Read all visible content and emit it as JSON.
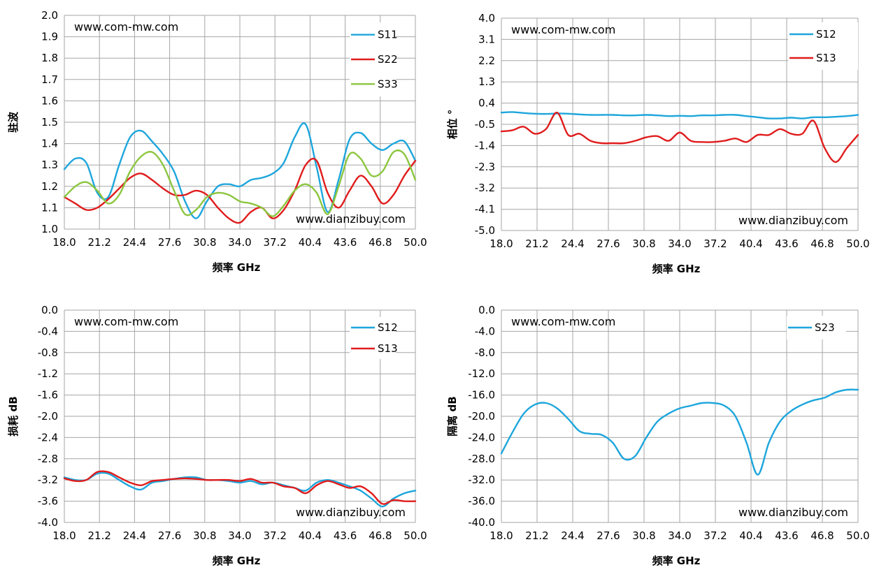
{
  "charts": [
    {
      "id": "vswr",
      "type": "line",
      "watermark_top": "www.com-mw.com",
      "watermark_bottom": "www.dianzibuy.com",
      "xlabel": "频率 GHz",
      "ylabel": "驻波",
      "xlim": [
        18.0,
        50.0
      ],
      "ylim": [
        1.0,
        2.0
      ],
      "x_ticks": [
        "18.0",
        "21.2",
        "24.4",
        "27.6",
        "30.8",
        "34.0",
        "37.2",
        "40.4",
        "43.6",
        "46.8",
        "50.0"
      ],
      "y_ticks": [
        "2.0",
        "1.9",
        "1.8",
        "1.7",
        "1.6",
        "1.5",
        "1.4",
        "1.3",
        "1.2",
        "1.1",
        "1.0"
      ],
      "series": [
        {
          "name": "S11",
          "color": "#1ea6dc",
          "x": [
            18.0,
            19.0,
            20.0,
            21.0,
            22.0,
            23.0,
            24.0,
            25.0,
            26.0,
            27.0,
            28.0,
            29.0,
            30.0,
            31.0,
            32.0,
            33.0,
            34.0,
            35.0,
            36.0,
            37.0,
            38.0,
            39.0,
            40.0,
            41.0,
            42.0,
            43.0,
            44.0,
            45.0,
            46.0,
            47.0,
            48.0,
            49.0,
            50.0
          ],
          "y": [
            1.28,
            1.33,
            1.31,
            1.17,
            1.15,
            1.3,
            1.43,
            1.46,
            1.41,
            1.35,
            1.27,
            1.13,
            1.05,
            1.13,
            1.2,
            1.21,
            1.2,
            1.23,
            1.24,
            1.26,
            1.31,
            1.43,
            1.49,
            1.29,
            1.08,
            1.23,
            1.42,
            1.45,
            1.4,
            1.37,
            1.4,
            1.41,
            1.32
          ]
        },
        {
          "name": "S22",
          "color": "#e01c1c",
          "x": [
            18.0,
            19.0,
            20.0,
            21.0,
            22.0,
            23.0,
            24.0,
            25.0,
            26.0,
            27.0,
            28.0,
            29.0,
            30.0,
            31.0,
            32.0,
            33.0,
            34.0,
            35.0,
            36.0,
            37.0,
            38.0,
            39.0,
            40.0,
            41.0,
            42.0,
            43.0,
            44.0,
            45.0,
            46.0,
            47.0,
            48.0,
            49.0,
            50.0
          ],
          "y": [
            1.15,
            1.12,
            1.09,
            1.1,
            1.14,
            1.19,
            1.24,
            1.26,
            1.23,
            1.19,
            1.16,
            1.16,
            1.18,
            1.16,
            1.1,
            1.05,
            1.03,
            1.08,
            1.1,
            1.05,
            1.09,
            1.18,
            1.3,
            1.32,
            1.17,
            1.1,
            1.18,
            1.25,
            1.2,
            1.12,
            1.16,
            1.25,
            1.32
          ]
        },
        {
          "name": "S33",
          "color": "#8cc63f",
          "x": [
            18.0,
            19.0,
            20.0,
            21.0,
            22.0,
            23.0,
            24.0,
            25.0,
            26.0,
            27.0,
            28.0,
            29.0,
            30.0,
            31.0,
            32.0,
            33.0,
            34.0,
            35.0,
            36.0,
            37.0,
            38.0,
            39.0,
            40.0,
            41.0,
            42.0,
            43.0,
            44.0,
            45.0,
            46.0,
            47.0,
            48.0,
            49.0,
            50.0
          ],
          "y": [
            1.15,
            1.2,
            1.22,
            1.18,
            1.12,
            1.16,
            1.27,
            1.34,
            1.36,
            1.3,
            1.18,
            1.07,
            1.09,
            1.15,
            1.17,
            1.16,
            1.13,
            1.12,
            1.1,
            1.06,
            1.11,
            1.18,
            1.21,
            1.17,
            1.07,
            1.2,
            1.35,
            1.33,
            1.25,
            1.27,
            1.36,
            1.35,
            1.23
          ]
        }
      ]
    },
    {
      "id": "phase",
      "type": "line",
      "watermark_top": "www.com-mw.com",
      "watermark_bottom": "www.dianzibuy.com",
      "xlabel": "频率 GHz",
      "ylabel": "相位 °",
      "xlim": [
        18.0,
        50.0
      ],
      "ylim": [
        -5.0,
        4.0
      ],
      "x_ticks": [
        "18.0",
        "21.2",
        "24.4",
        "27.6",
        "30.8",
        "34.0",
        "37.2",
        "40.4",
        "43.6",
        "46.8",
        "50.0"
      ],
      "y_ticks": [
        "4.0",
        "3.1",
        "2.2",
        "1.3",
        "0.4",
        "-0.5",
        "-1.4",
        "-2.3",
        "-3.2",
        "-4.1",
        "-5.0"
      ],
      "series": [
        {
          "name": "S12",
          "color": "#1ea6dc",
          "x": [
            18.0,
            19.0,
            20.0,
            21.0,
            22.0,
            23.0,
            24.0,
            25.0,
            26.0,
            27.0,
            28.0,
            29.0,
            30.0,
            31.0,
            32.0,
            33.0,
            34.0,
            35.0,
            36.0,
            37.0,
            38.0,
            39.0,
            40.0,
            41.0,
            42.0,
            43.0,
            44.0,
            45.0,
            46.0,
            47.0,
            48.0,
            49.0,
            50.0
          ],
          "y": [
            0.0,
            0.02,
            -0.02,
            -0.05,
            -0.06,
            -0.04,
            -0.05,
            -0.08,
            -0.1,
            -0.1,
            -0.1,
            -0.12,
            -0.12,
            -0.1,
            -0.12,
            -0.15,
            -0.14,
            -0.15,
            -0.12,
            -0.12,
            -0.1,
            -0.1,
            -0.15,
            -0.2,
            -0.25,
            -0.25,
            -0.22,
            -0.25,
            -0.2,
            -0.2,
            -0.18,
            -0.15,
            -0.1
          ]
        },
        {
          "name": "S13",
          "color": "#e01c1c",
          "x": [
            18.0,
            19.0,
            20.0,
            21.0,
            22.0,
            23.0,
            24.0,
            25.0,
            26.0,
            27.0,
            28.0,
            29.0,
            30.0,
            31.0,
            32.0,
            33.0,
            34.0,
            35.0,
            36.0,
            37.0,
            38.0,
            39.0,
            40.0,
            41.0,
            42.0,
            43.0,
            44.0,
            45.0,
            46.0,
            47.0,
            48.0,
            49.0,
            50.0
          ],
          "y": [
            -0.8,
            -0.75,
            -0.6,
            -0.9,
            -0.7,
            0.0,
            -0.95,
            -0.9,
            -1.2,
            -1.3,
            -1.3,
            -1.3,
            -1.2,
            -1.05,
            -1.0,
            -1.2,
            -0.85,
            -1.2,
            -1.25,
            -1.25,
            -1.2,
            -1.1,
            -1.25,
            -0.95,
            -0.95,
            -0.7,
            -0.9,
            -0.9,
            -0.35,
            -1.5,
            -2.1,
            -1.5,
            -0.95
          ]
        }
      ]
    },
    {
      "id": "loss",
      "type": "line",
      "watermark_top": "www.com-mw.com",
      "watermark_bottom": "www.dianzibuy.com",
      "xlabel": "频率 GHz",
      "ylabel": "损耗 dB",
      "xlim": [
        18.0,
        50.0
      ],
      "ylim": [
        -4.0,
        0.0
      ],
      "x_ticks": [
        "18.0",
        "21.2",
        "24.4",
        "27.6",
        "30.8",
        "34.0",
        "37.2",
        "40.4",
        "43.6",
        "46.8",
        "50.0"
      ],
      "y_ticks": [
        "0.0",
        "-0.4",
        "-0.8",
        "-1.2",
        "-1.6",
        "-2.0",
        "-2.4",
        "-2.8",
        "-3.2",
        "-3.6",
        "-4.0"
      ],
      "series": [
        {
          "name": "S12",
          "color": "#1ea6dc",
          "x": [
            18.0,
            19.0,
            20.0,
            21.0,
            22.0,
            23.0,
            24.0,
            25.0,
            26.0,
            27.0,
            28.0,
            29.0,
            30.0,
            31.0,
            32.0,
            33.0,
            34.0,
            35.0,
            36.0,
            37.0,
            38.0,
            39.0,
            40.0,
            41.0,
            42.0,
            43.0,
            44.0,
            45.0,
            46.0,
            47.0,
            48.0,
            49.0,
            50.0
          ],
          "y": [
            -3.15,
            -3.2,
            -3.2,
            -3.08,
            -3.08,
            -3.2,
            -3.32,
            -3.38,
            -3.25,
            -3.22,
            -3.18,
            -3.15,
            -3.15,
            -3.2,
            -3.2,
            -3.22,
            -3.25,
            -3.22,
            -3.28,
            -3.25,
            -3.3,
            -3.35,
            -3.4,
            -3.25,
            -3.2,
            -3.25,
            -3.32,
            -3.4,
            -3.55,
            -3.7,
            -3.55,
            -3.45,
            -3.4
          ]
        },
        {
          "name": "S13",
          "color": "#e01c1c",
          "x": [
            18.0,
            19.0,
            20.0,
            21.0,
            22.0,
            23.0,
            24.0,
            25.0,
            26.0,
            27.0,
            28.0,
            29.0,
            30.0,
            31.0,
            32.0,
            33.0,
            34.0,
            35.0,
            36.0,
            37.0,
            38.0,
            39.0,
            40.0,
            41.0,
            42.0,
            43.0,
            44.0,
            45.0,
            46.0,
            47.0,
            48.0,
            49.0,
            50.0
          ],
          "y": [
            -3.17,
            -3.22,
            -3.2,
            -3.05,
            -3.05,
            -3.15,
            -3.25,
            -3.3,
            -3.22,
            -3.2,
            -3.18,
            -3.17,
            -3.18,
            -3.2,
            -3.2,
            -3.2,
            -3.22,
            -3.18,
            -3.25,
            -3.25,
            -3.32,
            -3.35,
            -3.45,
            -3.3,
            -3.22,
            -3.28,
            -3.35,
            -3.32,
            -3.45,
            -3.65,
            -3.58,
            -3.6,
            -3.6
          ]
        }
      ]
    },
    {
      "id": "isolation",
      "type": "line",
      "watermark_top": "www.com-mw.com",
      "watermark_bottom": "www.dianzibuy.com",
      "xlabel": "频率 GHz",
      "ylabel": "隔离 dB",
      "xlim": [
        18.0,
        50.0
      ],
      "ylim": [
        -40.0,
        0.0
      ],
      "x_ticks": [
        "18.0",
        "21.2",
        "24.4",
        "27.6",
        "30.8",
        "34.0",
        "37.2",
        "40.4",
        "43.6",
        "46.8",
        "50.0"
      ],
      "y_ticks": [
        "0.0",
        "-4.0",
        "-8.0",
        "-12.0",
        "-16.0",
        "-20.0",
        "-24.0",
        "-28.0",
        "-32.0",
        "-36.0",
        "-40.0"
      ],
      "series": [
        {
          "name": "S23",
          "color": "#1ea6dc",
          "x": [
            18.0,
            19.0,
            20.0,
            21.0,
            22.0,
            23.0,
            24.0,
            25.0,
            26.0,
            27.0,
            28.0,
            29.0,
            30.0,
            31.0,
            32.0,
            33.0,
            34.0,
            35.0,
            36.0,
            37.0,
            38.0,
            39.0,
            40.0,
            41.0,
            42.0,
            43.0,
            44.0,
            45.0,
            46.0,
            47.0,
            48.0,
            49.0,
            50.0
          ],
          "y": [
            -27.0,
            -23.0,
            -19.5,
            -17.8,
            -17.5,
            -18.5,
            -20.5,
            -22.8,
            -23.3,
            -23.5,
            -25.0,
            -28.0,
            -27.5,
            -24.0,
            -21.0,
            -19.5,
            -18.5,
            -18.0,
            -17.5,
            -17.5,
            -18.0,
            -20.0,
            -25.0,
            -31.0,
            -25.0,
            -21.0,
            -19.0,
            -17.8,
            -17.0,
            -16.5,
            -15.5,
            -15.0,
            -15.0
          ]
        }
      ]
    }
  ]
}
